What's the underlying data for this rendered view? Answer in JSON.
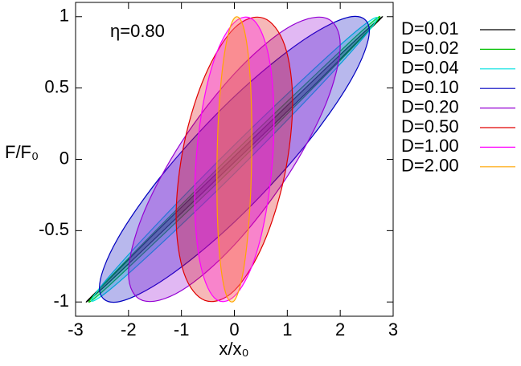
{
  "chart_data": {
    "type": "ellipse",
    "xlabel": "x/x₀",
    "ylabel": "F/F₀",
    "annotation": "η=0.80",
    "xlim": [
      -3,
      3
    ],
    "ylim": [
      -1.1,
      1.1
    ],
    "xticks": [
      -3,
      -2,
      -1,
      0,
      1,
      2,
      3
    ],
    "yticks": [
      -1,
      -0.5,
      0,
      0.5,
      1
    ],
    "legend": "right",
    "series": [
      {
        "name": "D=0.01",
        "color": "#000000",
        "x": [
          2.8,
          2.42,
          1.4,
          0,
          -1.4,
          -2.42,
          -2.8,
          -2.42,
          -1.4,
          0,
          1.4,
          2.42
        ],
        "values": [
          1.0,
          0.88,
          0.52,
          0.02,
          -0.48,
          -0.86,
          -1.0,
          -0.88,
          -0.52,
          -0.02,
          0.48,
          0.86
        ]
      },
      {
        "name": "D=0.02",
        "color": "#00c000",
        "x": [
          2.75,
          2.38,
          1.38,
          0,
          -1.38,
          -2.38,
          -2.75,
          -2.38,
          -1.38,
          0,
          1.38,
          2.38
        ],
        "values": [
          1.0,
          0.89,
          0.54,
          0.05,
          -0.46,
          -0.84,
          -1.0,
          -0.89,
          -0.54,
          -0.05,
          0.46,
          0.84
        ]
      },
      {
        "name": "D=0.04",
        "color": "#00e0e0",
        "x": [
          2.7,
          2.34,
          1.35,
          0,
          -1.35,
          -2.34,
          -2.7,
          -2.34,
          -1.35,
          0,
          1.35,
          2.34
        ],
        "values": [
          0.99,
          0.91,
          0.58,
          0.1,
          -0.41,
          -0.81,
          -0.99,
          -0.91,
          -0.58,
          -0.1,
          0.41,
          0.81
        ]
      },
      {
        "name": "D=0.10",
        "color": "#0000c0",
        "x": [
          2.55,
          2.21,
          1.28,
          0,
          -1.28,
          -2.21,
          -2.55,
          -2.21,
          -1.28,
          0,
          1.28,
          2.21
        ],
        "values": [
          0.9,
          1.0,
          0.83,
          0.44,
          -0.07,
          -0.56,
          -0.9,
          -1.0,
          -0.83,
          -0.44,
          0.07,
          0.56
        ]
      },
      {
        "name": "D=0.20",
        "color": "#9400d3",
        "x": [
          2.0,
          1.73,
          1.0,
          0,
          -1.0,
          -1.73,
          -2.0,
          -1.73,
          -1.0,
          0,
          1.0,
          1.73
        ],
        "values": [
          0.8,
          0.99,
          0.92,
          0.6,
          0.12,
          -0.39,
          -0.8,
          -0.99,
          -0.92,
          -0.6,
          -0.12,
          0.39
        ]
      },
      {
        "name": "D=0.50",
        "color": "#e00000",
        "x": [
          1.1,
          0.95,
          0.55,
          0,
          -0.55,
          -0.95,
          -1.1,
          -0.95,
          -0.55,
          0,
          0.55,
          0.95
        ],
        "values": [
          0.4,
          0.8,
          0.99,
          0.92,
          0.59,
          0.11,
          -0.4,
          -0.8,
          -0.99,
          -0.92,
          -0.59,
          -0.11
        ]
      },
      {
        "name": "D=1.00",
        "color": "#ff00ff",
        "x": [
          0.75,
          0.65,
          0.38,
          0,
          -0.38,
          -0.65,
          -0.75,
          -0.65,
          -0.38,
          0,
          0.38,
          0.65
        ],
        "values": [
          0.27,
          0.72,
          0.97,
          0.96,
          0.7,
          0.25,
          -0.27,
          -0.72,
          -0.97,
          -0.96,
          -0.7,
          -0.25
        ]
      },
      {
        "name": "D=2.00",
        "color": "#ffa500",
        "x": [
          0.33,
          0.29,
          0.17,
          0,
          -0.17,
          -0.29,
          -0.33,
          -0.29,
          -0.17,
          0,
          0.17,
          0.29
        ],
        "values": [
          0.15,
          0.62,
          0.93,
          0.99,
          0.78,
          0.36,
          -0.15,
          -0.62,
          -0.93,
          -0.99,
          -0.78,
          -0.36
        ]
      }
    ]
  }
}
